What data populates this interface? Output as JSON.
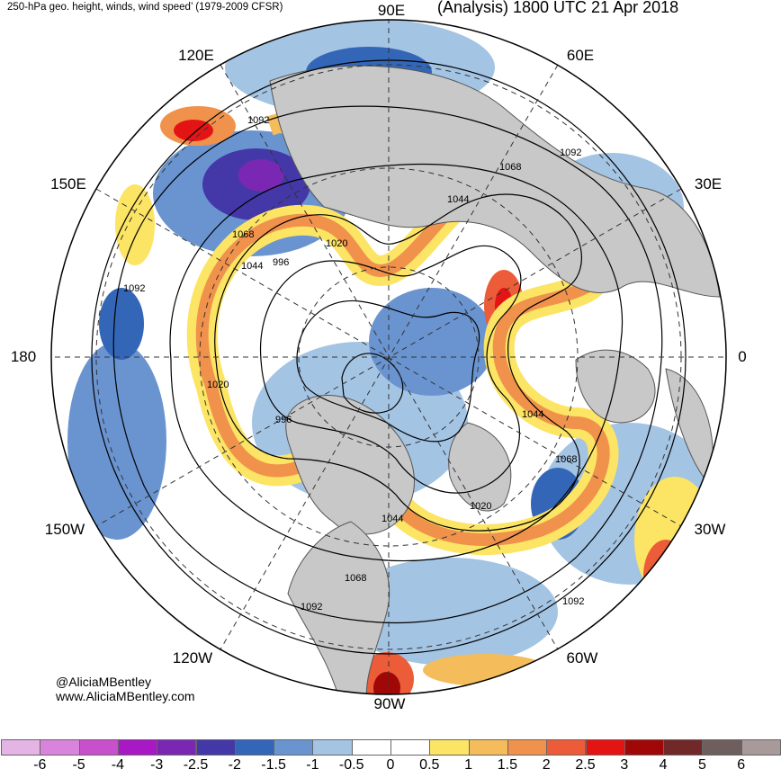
{
  "header": {
    "left_title": "250-hPa geo. height, winds, wind speed’ (1979-2009 CFSR)",
    "right_title": "(Analysis) 1800 UTC 21 Apr 2018"
  },
  "longitude_labels": {
    "lon_90E": "90E",
    "lon_120E": "120E",
    "lon_60E": "60E",
    "lon_150E": "150E",
    "lon_30E": "30E",
    "lon_180": "180",
    "lon_0": "0",
    "lon_150W": "150W",
    "lon_30W": "30W",
    "lon_120W": "120W",
    "lon_60W": "60W",
    "lon_90W": "90W"
  },
  "contour_labels": [
    {
      "text": "1092"
    },
    {
      "text": "1068"
    },
    {
      "text": "1092"
    },
    {
      "text": "1044"
    },
    {
      "text": "1068"
    },
    {
      "text": "1020"
    },
    {
      "text": "996"
    },
    {
      "text": "1044"
    },
    {
      "text": "1092"
    },
    {
      "text": "1020"
    },
    {
      "text": "996"
    },
    {
      "text": "1044"
    },
    {
      "text": "1068"
    },
    {
      "text": "1020"
    },
    {
      "text": "1044"
    },
    {
      "text": "1068"
    },
    {
      "text": "1092"
    },
    {
      "text": "1092"
    }
  ],
  "credits": {
    "handle": "@AliciaMBentley",
    "website": "www.AliciaMBentley.com"
  },
  "colorbar": {
    "ticks": [
      "-6",
      "-5",
      "-4",
      "-3",
      "-2.5",
      "-2",
      "-1.5",
      "-1",
      "-0.5",
      "0",
      "0.5",
      "1",
      "1.5",
      "2",
      "2.5",
      "3",
      "4",
      "5",
      "6"
    ],
    "colors": [
      "#e4b4e4",
      "#d884dc",
      "#c850cc",
      "#a818c4",
      "#7a28b4",
      "#4438a8",
      "#3466b8",
      "#6a94d0",
      "#a4c4e4",
      "#ffffff",
      "#ffffff",
      "#fce464",
      "#f4bc5a",
      "#f0924c",
      "#ec5c38",
      "#e41414",
      "#a00808",
      "#702828",
      "#6e5e5e",
      "#a89a9a"
    ]
  },
  "colors": {
    "land": "#c8c8c8",
    "border": "#555555"
  }
}
